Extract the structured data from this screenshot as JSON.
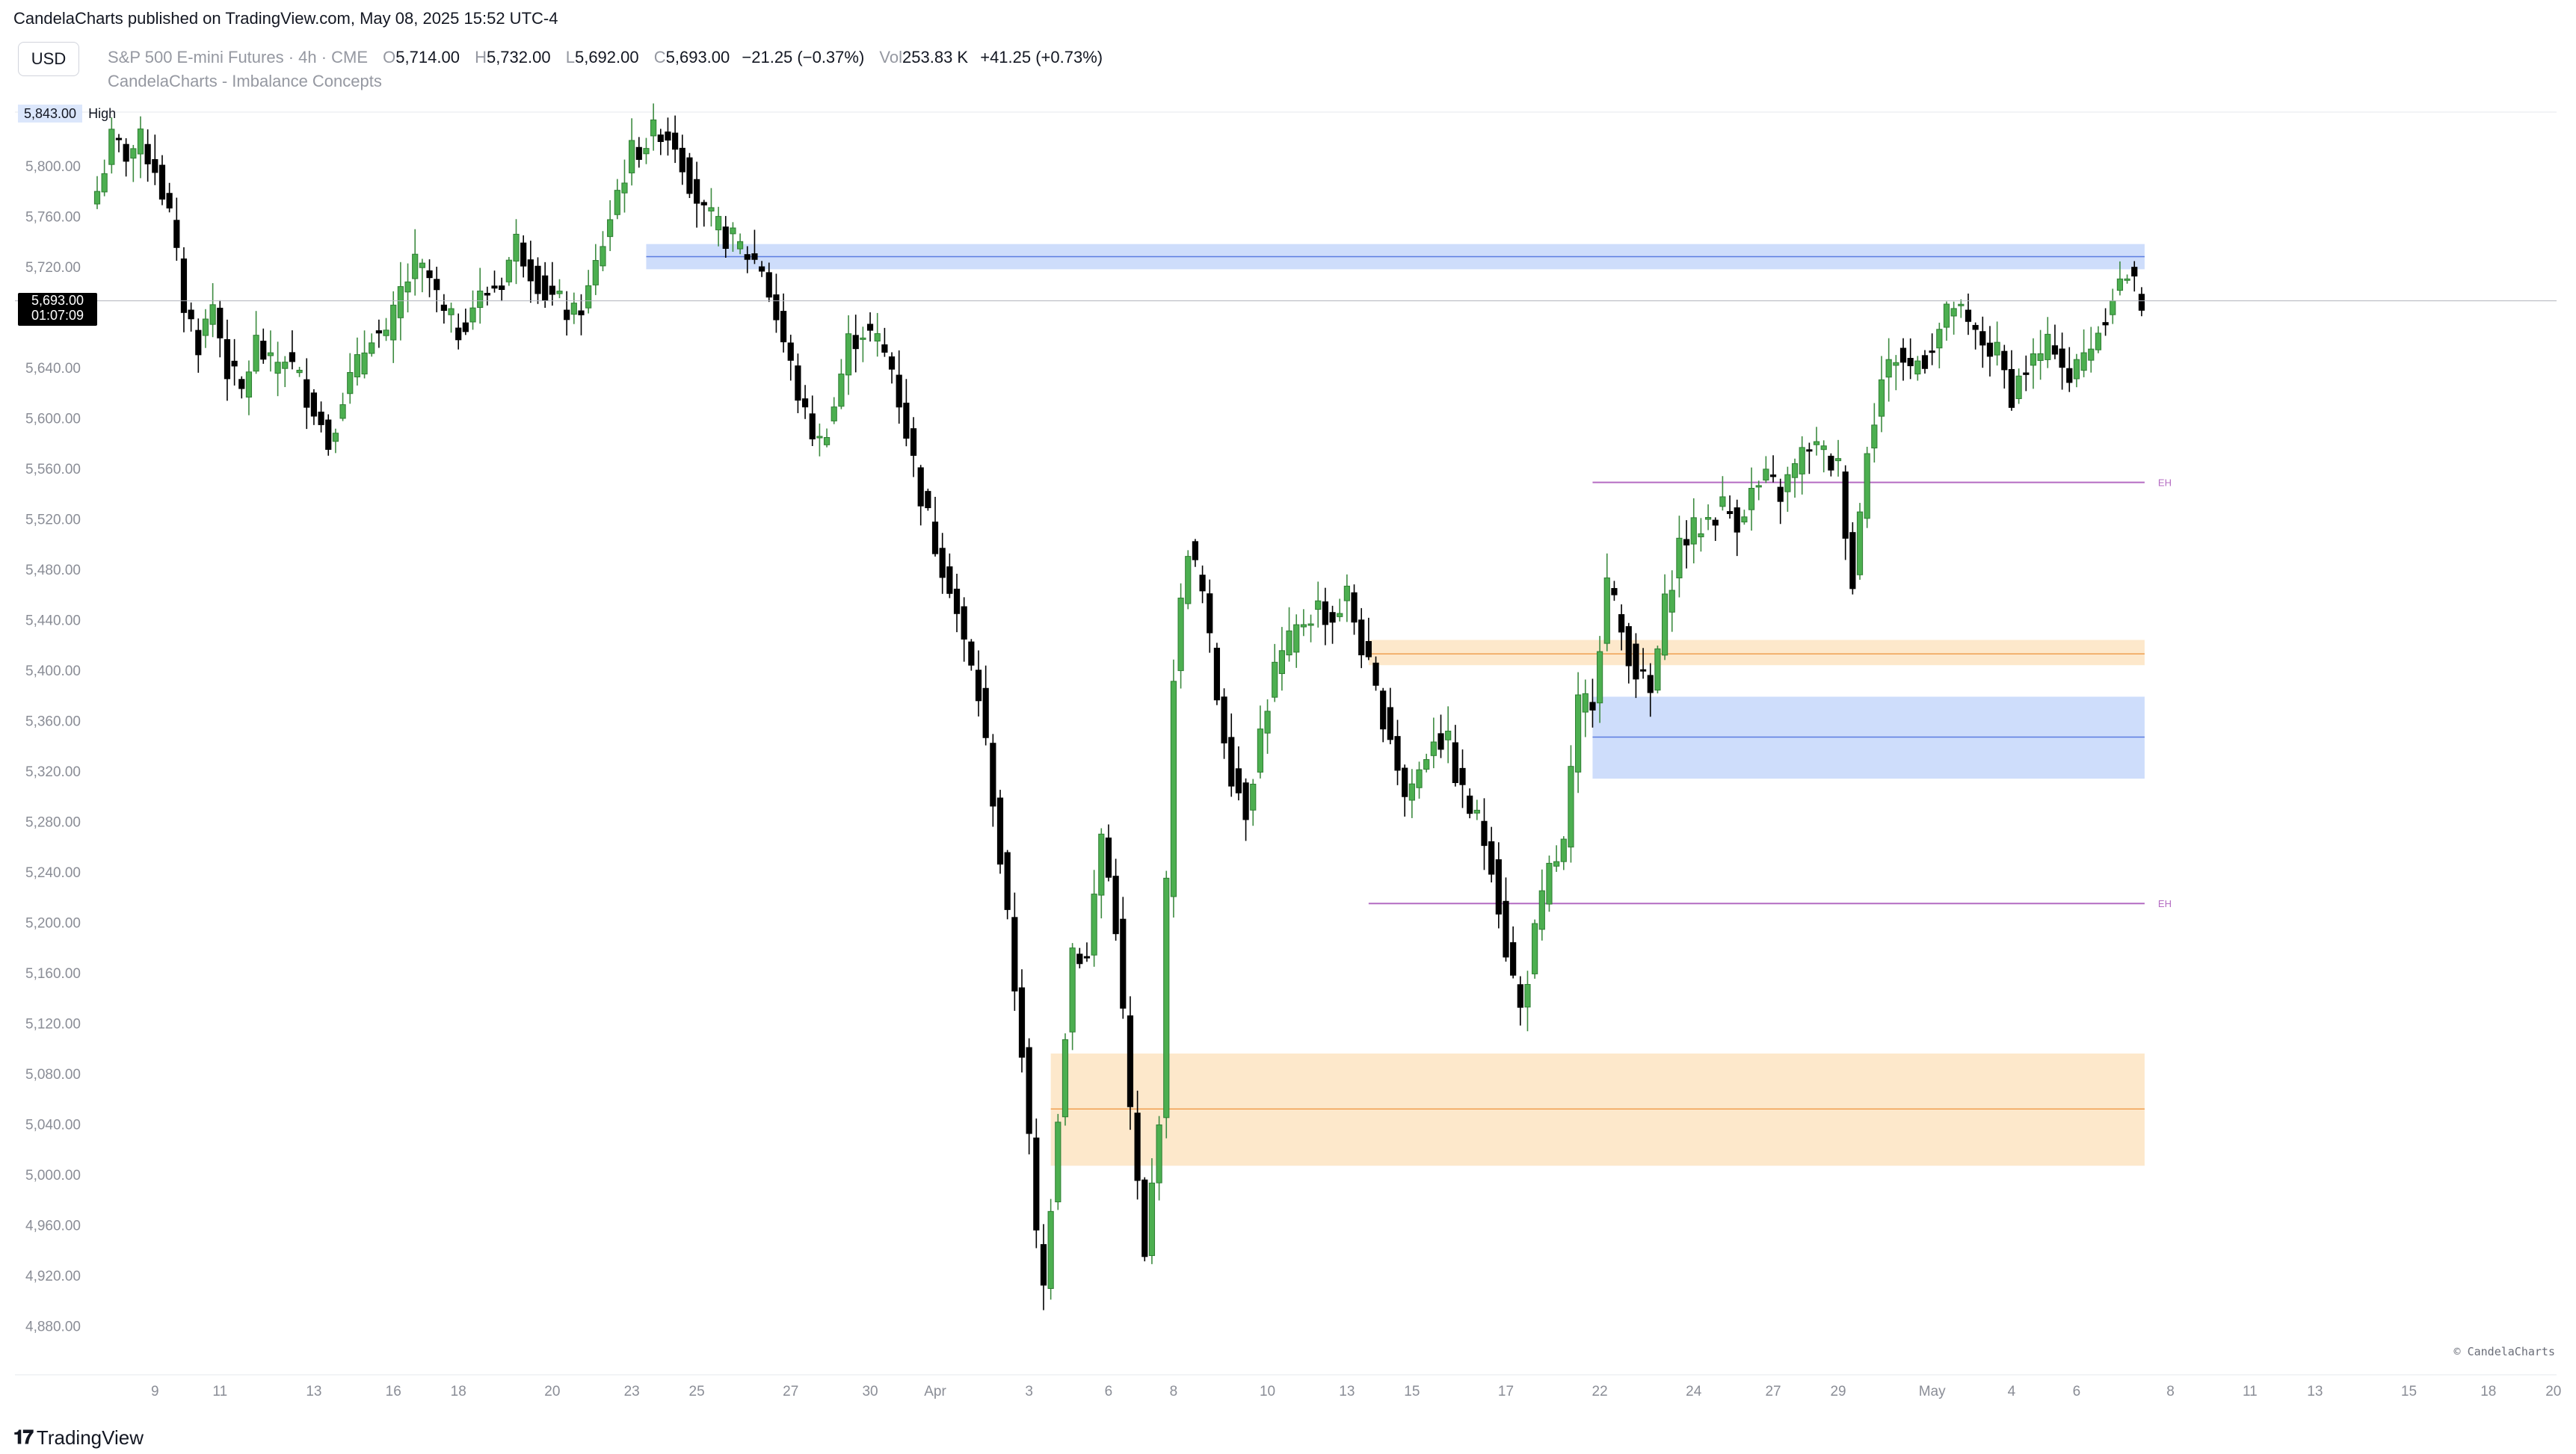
{
  "header": {
    "published": "CandelaCharts published on TradingView.com, May 08, 2025 15:52 UTC-4",
    "currency_button": "USD",
    "symbol": "S&P 500 E-mini Futures · 4h · CME",
    "open_label": "O",
    "open": "5,714.00",
    "high_label": "H",
    "high": "5,732.00",
    "low_label": "L",
    "low": "5,692.00",
    "close_label": "C",
    "close": "5,693.00",
    "change": "−21.25 (−0.37%)",
    "vol_label": "Vol",
    "volume": "253.83 K",
    "vol_change": "+41.25 (+0.73%)",
    "indicator": "CandelaCharts - Imbalance Concepts"
  },
  "price_tags": {
    "high_price": "5,843.00",
    "high_word": "High",
    "last_price": "5,693.00",
    "countdown": "01:07:09"
  },
  "footer": {
    "brand": "TradingView",
    "copyright": "© CandelaCharts"
  },
  "colors": {
    "bull": "#4caf50",
    "bear": "#000000",
    "blue_zone": "#c9d9fb",
    "orange_zone": "#fde6c5",
    "eh_line": "#b46bc2"
  },
  "chart_data": {
    "type": "candlestick",
    "title": "S&P 500 E-mini Futures · 4h · CME",
    "ylim": [
      4840,
      5870
    ],
    "y_ticks": [
      "4,880.00",
      "4,920.00",
      "4,960.00",
      "5,000.00",
      "5,040.00",
      "5,080.00",
      "5,120.00",
      "5,160.00",
      "5,200.00",
      "5,240.00",
      "5,280.00",
      "5,320.00",
      "5,360.00",
      "5,400.00",
      "5,440.00",
      "5,480.00",
      "5,520.00",
      "5,560.00",
      "5,600.00",
      "5,640.00",
      "5,680.00",
      "5,720.00",
      "5,760.00",
      "5,800.00"
    ],
    "x_ticks": [
      {
        "label": "9",
        "bar": 8
      },
      {
        "label": "11",
        "bar": 17
      },
      {
        "label": "13",
        "bar": 30
      },
      {
        "label": "16",
        "bar": 41
      },
      {
        "label": "18",
        "bar": 50
      },
      {
        "label": "20",
        "bar": 63
      },
      {
        "label": "23",
        "bar": 74
      },
      {
        "label": "25",
        "bar": 83
      },
      {
        "label": "27",
        "bar": 96
      },
      {
        "label": "30",
        "bar": 107
      },
      {
        "label": "Apr",
        "bar": 116
      },
      {
        "label": "3",
        "bar": 129
      },
      {
        "label": "6",
        "bar": 140
      },
      {
        "label": "8",
        "bar": 149
      },
      {
        "label": "10",
        "bar": 162
      },
      {
        "label": "13",
        "bar": 173
      },
      {
        "label": "15",
        "bar": 182
      },
      {
        "label": "17",
        "bar": 195
      },
      {
        "label": "22",
        "bar": 208
      },
      {
        "label": "24",
        "bar": 221
      },
      {
        "label": "27",
        "bar": 232
      },
      {
        "label": "29",
        "bar": 241
      },
      {
        "label": "May",
        "bar": 254
      },
      {
        "label": "4",
        "bar": 265
      },
      {
        "label": "6",
        "bar": 274
      },
      {
        "label": "8",
        "bar": 287
      },
      {
        "label": "11",
        "bar": 298
      },
      {
        "label": "13",
        "bar": 307
      },
      {
        "label": "15",
        "bar": 320
      },
      {
        "label": "18",
        "bar": 331
      },
      {
        "label": "20",
        "bar": 340
      }
    ],
    "anchors": [
      [
        0,
        5780
      ],
      [
        2,
        5820
      ],
      [
        4,
        5810
      ],
      [
        6,
        5818
      ],
      [
        8,
        5800
      ],
      [
        10,
        5760
      ],
      [
        12,
        5690
      ],
      [
        14,
        5660
      ],
      [
        16,
        5690
      ],
      [
        18,
        5640
      ],
      [
        20,
        5620
      ],
      [
        22,
        5660
      ],
      [
        24,
        5640
      ],
      [
        26,
        5650
      ],
      [
        28,
        5630
      ],
      [
        30,
        5610
      ],
      [
        32,
        5580
      ],
      [
        34,
        5620
      ],
      [
        36,
        5640
      ],
      [
        38,
        5670
      ],
      [
        40,
        5660
      ],
      [
        42,
        5700
      ],
      [
        44,
        5720
      ],
      [
        46,
        5710
      ],
      [
        48,
        5680
      ],
      [
        50,
        5670
      ],
      [
        52,
        5690
      ],
      [
        54,
        5700
      ],
      [
        56,
        5710
      ],
      [
        58,
        5740
      ],
      [
        60,
        5720
      ],
      [
        62,
        5700
      ],
      [
        64,
        5690
      ],
      [
        66,
        5680
      ],
      [
        68,
        5700
      ],
      [
        70,
        5740
      ],
      [
        72,
        5780
      ],
      [
        74,
        5810
      ],
      [
        76,
        5820
      ],
      [
        78,
        5830
      ],
      [
        80,
        5820
      ],
      [
        82,
        5790
      ],
      [
        84,
        5760
      ],
      [
        86,
        5750
      ],
      [
        88,
        5740
      ],
      [
        90,
        5730
      ],
      [
        92,
        5720
      ],
      [
        94,
        5680
      ],
      [
        96,
        5640
      ],
      [
        98,
        5600
      ],
      [
        100,
        5580
      ],
      [
        102,
        5610
      ],
      [
        104,
        5660
      ],
      [
        106,
        5670
      ],
      [
        108,
        5660
      ],
      [
        110,
        5640
      ],
      [
        112,
        5590
      ],
      [
        114,
        5540
      ],
      [
        116,
        5500
      ],
      [
        118,
        5470
      ],
      [
        120,
        5420
      ],
      [
        122,
        5380
      ],
      [
        124,
        5300
      ],
      [
        126,
        5200
      ],
      [
        128,
        5100
      ],
      [
        130,
        4950
      ],
      [
        131,
        4910
      ],
      [
        133,
        5050
      ],
      [
        135,
        5180
      ],
      [
        137,
        5170
      ],
      [
        139,
        5270
      ],
      [
        141,
        5200
      ],
      [
        143,
        5050
      ],
      [
        145,
        4930
      ],
      [
        147,
        5050
      ],
      [
        149,
        5400
      ],
      [
        151,
        5500
      ],
      [
        153,
        5460
      ],
      [
        155,
        5380
      ],
      [
        157,
        5320
      ],
      [
        159,
        5290
      ],
      [
        161,
        5350
      ],
      [
        163,
        5400
      ],
      [
        165,
        5420
      ],
      [
        167,
        5440
      ],
      [
        169,
        5450
      ],
      [
        171,
        5440
      ],
      [
        173,
        5460
      ],
      [
        175,
        5420
      ],
      [
        177,
        5380
      ],
      [
        179,
        5350
      ],
      [
        181,
        5300
      ],
      [
        183,
        5320
      ],
      [
        185,
        5350
      ],
      [
        187,
        5340
      ],
      [
        189,
        5300
      ],
      [
        191,
        5280
      ],
      [
        193,
        5250
      ],
      [
        195,
        5180
      ],
      [
        197,
        5130
      ],
      [
        199,
        5190
      ],
      [
        201,
        5240
      ],
      [
        203,
        5260
      ],
      [
        205,
        5370
      ],
      [
        207,
        5380
      ],
      [
        209,
        5470
      ],
      [
        211,
        5430
      ],
      [
        213,
        5400
      ],
      [
        215,
        5380
      ],
      [
        217,
        5450
      ],
      [
        219,
        5500
      ],
      [
        221,
        5510
      ],
      [
        223,
        5520
      ],
      [
        225,
        5530
      ],
      [
        227,
        5520
      ],
      [
        229,
        5540
      ],
      [
        231,
        5550
      ],
      [
        233,
        5540
      ],
      [
        235,
        5560
      ],
      [
        237,
        5580
      ],
      [
        239,
        5570
      ],
      [
        241,
        5560
      ],
      [
        243,
        5470
      ],
      [
        245,
        5580
      ],
      [
        247,
        5630
      ],
      [
        249,
        5650
      ],
      [
        251,
        5640
      ],
      [
        253,
        5650
      ],
      [
        255,
        5670
      ],
      [
        257,
        5690
      ],
      [
        259,
        5670
      ],
      [
        261,
        5660
      ],
      [
        263,
        5650
      ],
      [
        265,
        5620
      ],
      [
        267,
        5640
      ],
      [
        269,
        5650
      ],
      [
        271,
        5660
      ],
      [
        273,
        5630
      ],
      [
        275,
        5650
      ],
      [
        277,
        5670
      ],
      [
        279,
        5700
      ],
      [
        281,
        5714
      ],
      [
        283,
        5693
      ]
    ],
    "zones": [
      {
        "kind": "blue",
        "x_start_bar": 76,
        "x_end_bar": 283,
        "y_low": 5718,
        "y_high": 5738,
        "mid": 5728
      },
      {
        "kind": "orange",
        "x_start_bar": 132,
        "x_end_bar": 283,
        "y_low": 5007,
        "y_high": 5096,
        "mid": 5052
      },
      {
        "kind": "orange",
        "x_start_bar": 176,
        "x_end_bar": 283,
        "y_low": 5404,
        "y_high": 5424,
        "mid": 5413
      },
      {
        "kind": "blue",
        "x_start_bar": 207,
        "x_end_bar": 283,
        "y_low": 5314,
        "y_high": 5379,
        "mid": 5347
      }
    ],
    "eh_lines": [
      {
        "label": "EH",
        "x_start_bar": 207,
        "x_end_bar": 283,
        "y": 5549
      },
      {
        "label": "EH",
        "x_start_bar": 176,
        "x_end_bar": 283,
        "y": 5215
      }
    ],
    "last_price": 5693,
    "high_marker": 5843
  }
}
